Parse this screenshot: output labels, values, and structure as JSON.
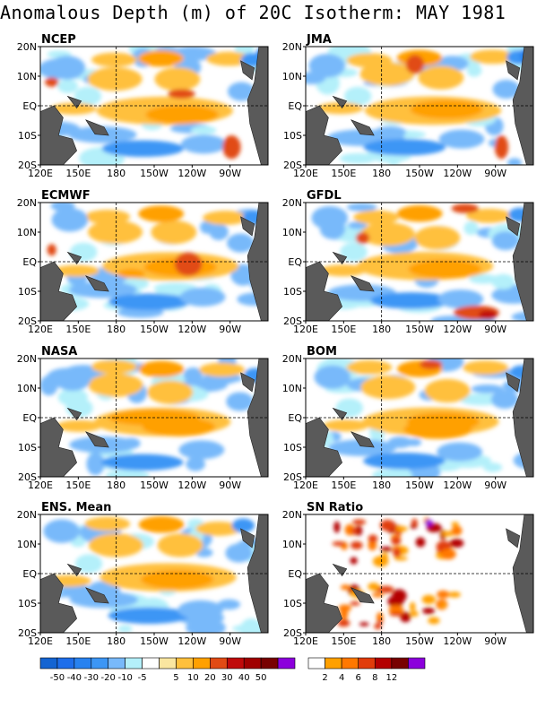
{
  "title": "Anomalous Depth (m) of 20C Isotherm: MAY 1981",
  "panels": [
    {
      "label": "NCEP"
    },
    {
      "label": "JMA"
    },
    {
      "label": "ECMWF"
    },
    {
      "label": "GFDL"
    },
    {
      "label": "NASA"
    },
    {
      "label": "BOM"
    },
    {
      "label": "ENS. Mean"
    },
    {
      "label": "SN Ratio"
    }
  ],
  "x_ticks": [
    "120E",
    "150E",
    "180",
    "150W",
    "120W",
    "90W"
  ],
  "y_ticks": [
    "20N",
    "10N",
    "EQ",
    "10S",
    "20S"
  ],
  "colorbar_anomaly": {
    "labels": [
      "-50",
      "-40",
      "-30",
      "-20",
      "-10",
      "-5",
      "5",
      "10",
      "20",
      "30",
      "40",
      "50"
    ],
    "colors": [
      "#1464d2",
      "#1e6eeb",
      "#2882f0",
      "#3c96f5",
      "#78b9fa",
      "#b4f0fa",
      "#ffffff",
      "#fae6a0",
      "#ffc03c",
      "#ffa000",
      "#e14b14",
      "#c00a0a",
      "#a00000",
      "#780000",
      "#8c00dc"
    ]
  },
  "colorbar_sn": {
    "labels": [
      "2",
      "4",
      "6",
      "8",
      "12"
    ],
    "colors": [
      "#ffffff",
      "#ffa000",
      "#ff7800",
      "#e13c0a",
      "#b40000",
      "#780000",
      "#8c00dc"
    ]
  },
  "colors": {
    "land": "#5a5a5a",
    "frame": "#000000"
  }
}
